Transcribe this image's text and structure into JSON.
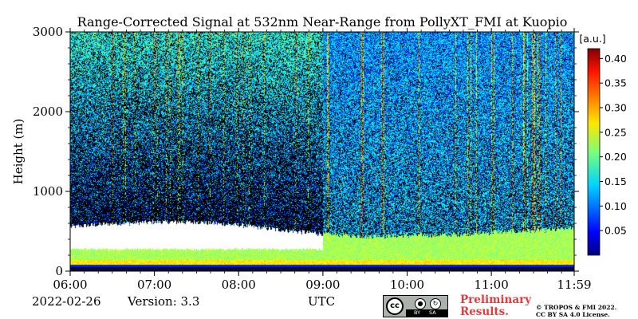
{
  "chart_data": {
    "type": "heatmap",
    "title": "Range-Corrected Signal at 532nm Near-Range from PollyXT_FMI at Kuopio",
    "xlabel": "",
    "ylabel": "Height (m)",
    "x_ticks": [
      "06:00",
      "07:00",
      "08:00",
      "09:00",
      "10:00",
      "11:00",
      "11:59"
    ],
    "x_range": [
      "06:00",
      "11:59"
    ],
    "y_ticks": [
      0,
      1000,
      2000,
      3000
    ],
    "ylim": [
      0,
      3000
    ],
    "colorbar": {
      "label": "[a.u.]",
      "range": [
        0.0,
        0.42
      ],
      "ticks": [
        "0.05",
        "0.10",
        "0.15",
        "0.20",
        "0.25",
        "0.30",
        "0.35",
        "0.40"
      ],
      "colormap": "jet"
    },
    "boundary_layer_top_m": [
      {
        "t": "06:00",
        "h": 560
      },
      {
        "t": "06:30",
        "h": 600
      },
      {
        "t": "07:00",
        "h": 620
      },
      {
        "t": "07:30",
        "h": 620
      },
      {
        "t": "08:00",
        "h": 580
      },
      {
        "t": "08:30",
        "h": 520
      },
      {
        "t": "09:00",
        "h": 470
      },
      {
        "t": "09:30",
        "h": 440
      },
      {
        "t": "10:00",
        "h": 450
      },
      {
        "t": "10:30",
        "h": 460
      },
      {
        "t": "11:00",
        "h": 490
      },
      {
        "t": "11:30",
        "h": 510
      },
      {
        "t": "11:59",
        "h": 540
      }
    ],
    "saturated_layer_m": {
      "from": "06:00",
      "to": "09:00",
      "bottom": 280,
      "top": 560
    }
  },
  "footer": {
    "date": "2022-02-26",
    "version": "Version: 3.3",
    "xunit": "UTC",
    "preliminary_line1": "Preliminary",
    "preliminary_line2": "Results.",
    "copyright_line1": "© TROPOS & FMI 2022.",
    "copyright_line2": "CC BY SA 4.0 License."
  },
  "license_badge": {
    "cc": "cc",
    "by": "BY",
    "sa": "SA"
  }
}
